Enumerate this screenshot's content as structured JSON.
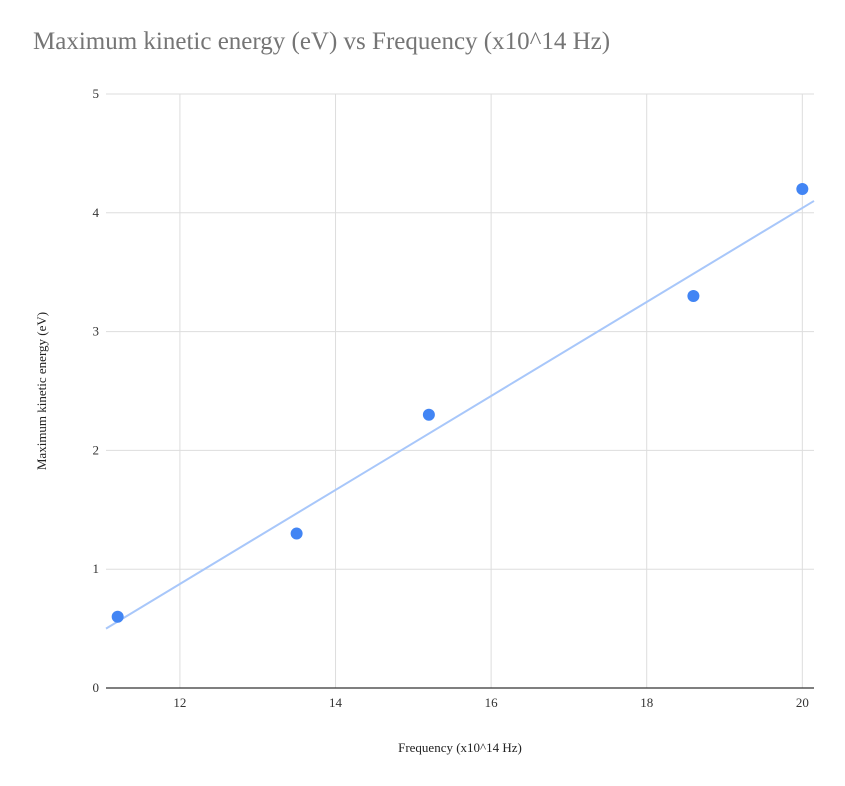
{
  "chart_data": {
    "type": "scatter",
    "title": "Maximum kinetic energy (eV) vs Frequency (x10^14 Hz)",
    "xlabel": "Frequency (x10^14 Hz)",
    "ylabel": "Maximum kinetic energy (eV)",
    "xlim": [
      11.05,
      20.15
    ],
    "ylim": [
      0,
      5
    ],
    "xticks": [
      12,
      14,
      16,
      18,
      20
    ],
    "yticks": [
      0,
      1,
      2,
      3,
      4,
      5
    ],
    "grid": true,
    "legend": "none",
    "series": [
      {
        "points": [
          {
            "x": 11.2,
            "y": 0.6
          },
          {
            "x": 13.5,
            "y": 1.3
          },
          {
            "x": 15.2,
            "y": 2.3
          },
          {
            "x": 18.6,
            "y": 3.3
          },
          {
            "x": 20.0,
            "y": 4.2
          }
        ],
        "color": "#4285f4"
      }
    ],
    "trendline": {
      "type": "linear",
      "x_range": [
        11.05,
        20.15
      ],
      "y_range": [
        0.5,
        4.1
      ],
      "color": "#a8c7fa"
    }
  }
}
